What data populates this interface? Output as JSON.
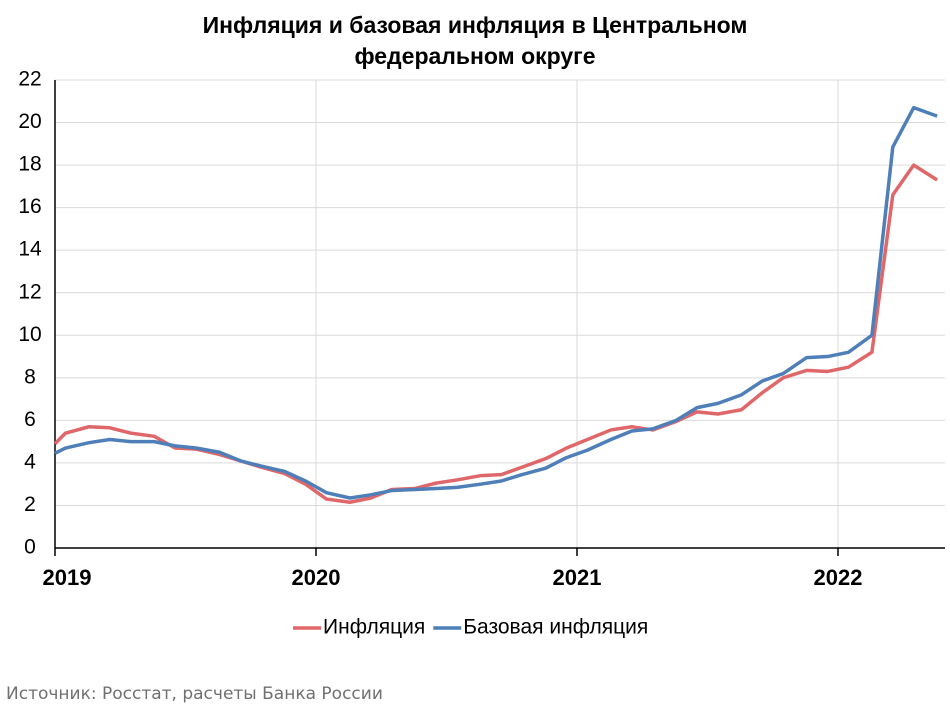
{
  "chart_data": {
    "type": "line",
    "title": "Инфляция и базовая инфляция в Центральном федеральном округе",
    "source": "Источник: Росстат, расчеты Банка России",
    "x": [
      2019.0,
      2019.04,
      2019.13,
      2019.21,
      2019.29,
      2019.38,
      2019.46,
      2019.54,
      2019.63,
      2019.71,
      2019.79,
      2019.88,
      2019.96,
      2020.04,
      2020.13,
      2020.21,
      2020.29,
      2020.38,
      2020.46,
      2020.54,
      2020.63,
      2020.71,
      2020.79,
      2020.88,
      2020.96,
      2021.04,
      2021.13,
      2021.21,
      2021.29,
      2021.38,
      2021.46,
      2021.54,
      2021.63,
      2021.71,
      2021.79,
      2021.88,
      2021.96,
      2022.04,
      2022.13,
      2022.21,
      2022.29,
      2022.38
    ],
    "series": [
      {
        "name": "Инфляция",
        "color": "#e06769",
        "values": [
          4.9,
          5.4,
          5.7,
          5.65,
          5.4,
          5.25,
          4.7,
          4.65,
          4.4,
          4.1,
          3.8,
          3.5,
          3.0,
          2.3,
          2.15,
          2.35,
          2.75,
          2.8,
          3.05,
          3.2,
          3.4,
          3.45,
          3.8,
          4.2,
          4.7,
          5.1,
          5.55,
          5.7,
          5.55,
          5.95,
          6.4,
          6.3,
          6.5,
          7.3,
          8.0,
          8.35,
          8.3,
          8.5,
          9.2,
          16.6,
          18.0,
          17.3
        ]
      },
      {
        "name": "Базовая инфляция",
        "color": "#4f7fb8",
        "values": [
          4.45,
          4.7,
          4.95,
          5.1,
          5.0,
          5.0,
          4.8,
          4.7,
          4.5,
          4.1,
          3.85,
          3.6,
          3.15,
          2.6,
          2.35,
          2.5,
          2.7,
          2.75,
          2.8,
          2.85,
          3.0,
          3.15,
          3.45,
          3.75,
          4.25,
          4.6,
          5.1,
          5.5,
          5.6,
          6.0,
          6.6,
          6.8,
          7.2,
          7.85,
          8.2,
          8.95,
          9.0,
          9.2,
          10.0,
          18.85,
          20.7,
          20.3
        ]
      }
    ],
    "xlim": [
      2019,
      2022.41
    ],
    "xticks": [
      2019,
      2020,
      2021,
      2022
    ],
    "ylim": [
      0,
      22
    ],
    "yticks": [
      0,
      2,
      4,
      6,
      8,
      10,
      12,
      14,
      16,
      18,
      20,
      22
    ],
    "grid": true,
    "legend": "bottom"
  }
}
